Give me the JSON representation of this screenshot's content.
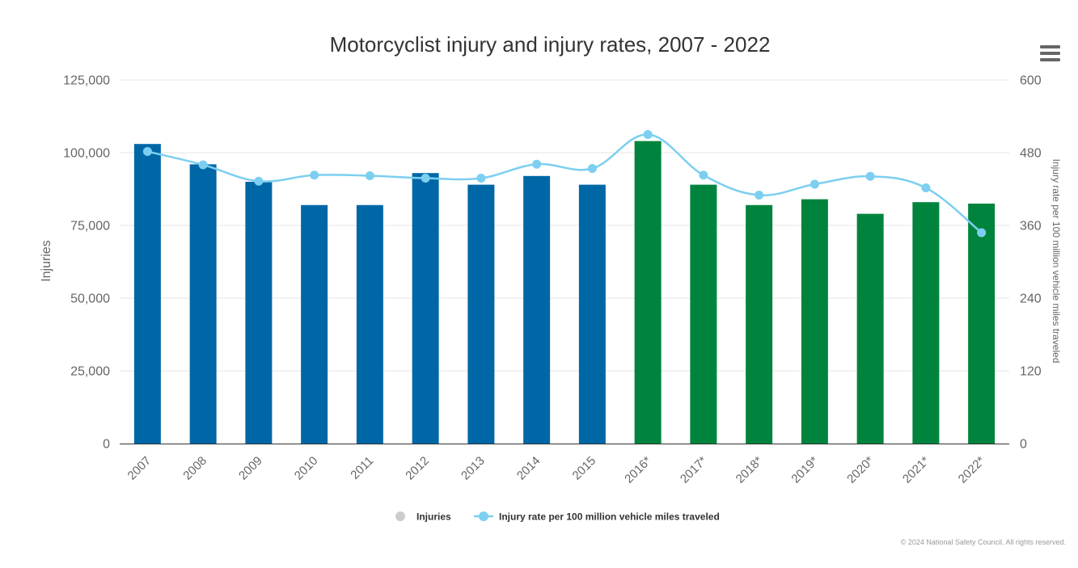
{
  "chart_data": {
    "type": "bar",
    "title": "Motorcyclist injury and injury rates, 2007 - 2022",
    "categories": [
      "2007",
      "2008",
      "2009",
      "2010",
      "2011",
      "2012",
      "2013",
      "2014",
      "2015",
      "2016*",
      "2017*",
      "2018*",
      "2019*",
      "2020*",
      "2021*",
      "2022*"
    ],
    "series": [
      {
        "name": "Injuries",
        "type": "bar",
        "axis": "left",
        "values": [
          103000,
          96000,
          90000,
          82000,
          82000,
          93000,
          89000,
          92000,
          89000,
          104000,
          89000,
          82000,
          84000,
          79000,
          83000,
          82500
        ]
      },
      {
        "name": "Injury rate per 100 million vehicle miles traveled",
        "type": "line",
        "axis": "right",
        "values": [
          482,
          460,
          433,
          443,
          442,
          438,
          438,
          461,
          454,
          510,
          443,
          410,
          428,
          441,
          422,
          348
        ]
      }
    ],
    "bar_colors": {
      "historic": "#0067a6",
      "estimated": "#00843d"
    },
    "estimated_from_index": 9,
    "line_color": "#7ccff0",
    "ylabel": "Injuries",
    "ylabel_right": "Injury rate per 100 million vehicle miles traveled",
    "ylim": [
      0,
      125000
    ],
    "ylim_right": [
      0,
      600
    ],
    "yticks": [
      "0",
      "25,000",
      "50,000",
      "75,000",
      "100,000",
      "125,000"
    ],
    "yticks_right": [
      "0",
      "120",
      "240",
      "360",
      "480",
      "600"
    ],
    "grid": true,
    "legend": "bottom-center"
  },
  "legend": {
    "bar_label": "Injuries",
    "line_label": "Injury rate per 100 million vehicle miles traveled",
    "bar_swatch_color": "#cccccc"
  },
  "credits": "© 2024 National Safety Council. All rights reserved.",
  "menu": {
    "icon": "hamburger-menu-icon"
  }
}
